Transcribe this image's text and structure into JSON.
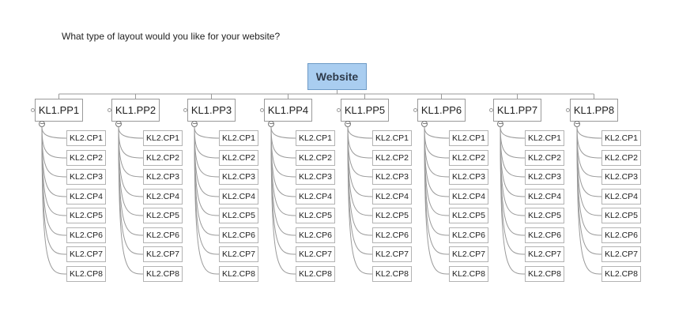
{
  "question": "What type of layout would you like for your website?",
  "root": {
    "label": "Website"
  },
  "parents": [
    {
      "label": "KL1.PP1",
      "children": [
        "KL2.CP1",
        "KL2.CP2",
        "KL2.CP3",
        "KL2.CP4",
        "KL2.CP5",
        "KL2.CP6",
        "KL2.CP7",
        "KL2.CP8"
      ]
    },
    {
      "label": "KL1.PP2",
      "children": [
        "KL2.CP1",
        "KL2.CP2",
        "KL2.CP3",
        "KL2.CP4",
        "KL2.CP5",
        "KL2.CP6",
        "KL2.CP7",
        "KL2.CP8"
      ]
    },
    {
      "label": "KL1.PP3",
      "children": [
        "KL2.CP1",
        "KL2.CP2",
        "KL2.CP3",
        "KL2.CP4",
        "KL2.CP5",
        "KL2.CP6",
        "KL2.CP7",
        "KL2.CP8"
      ]
    },
    {
      "label": "KL1.PP4",
      "children": [
        "KL2.CP1",
        "KL2.CP2",
        "KL2.CP3",
        "KL2.CP4",
        "KL2.CP5",
        "KL2.CP6",
        "KL2.CP7",
        "KL2.CP8"
      ]
    },
    {
      "label": "KL1.PP5",
      "children": [
        "KL2.CP1",
        "KL2.CP2",
        "KL2.CP3",
        "KL2.CP4",
        "KL2.CP5",
        "KL2.CP6",
        "KL2.CP7",
        "KL2.CP8"
      ]
    },
    {
      "label": "KL1.PP6",
      "children": [
        "KL2.CP1",
        "KL2.CP2",
        "KL2.CP3",
        "KL2.CP4",
        "KL2.CP5",
        "KL2.CP6",
        "KL2.CP7",
        "KL2.CP8"
      ]
    },
    {
      "label": "KL1.PP7",
      "children": [
        "KL2.CP1",
        "KL2.CP2",
        "KL2.CP3",
        "KL2.CP4",
        "KL2.CP5",
        "KL2.CP6",
        "KL2.CP7",
        "KL2.CP8"
      ]
    },
    {
      "label": "KL1.PP8",
      "children": [
        "KL2.CP1",
        "KL2.CP2",
        "KL2.CP3",
        "KL2.CP4",
        "KL2.CP5",
        "KL2.CP6",
        "KL2.CP7",
        "KL2.CP8"
      ]
    }
  ],
  "collapse_symbol": "−",
  "colors": {
    "root_fill": "#a9cdf0",
    "root_border": "#6d9ac6",
    "line": "#9a9a9a"
  }
}
